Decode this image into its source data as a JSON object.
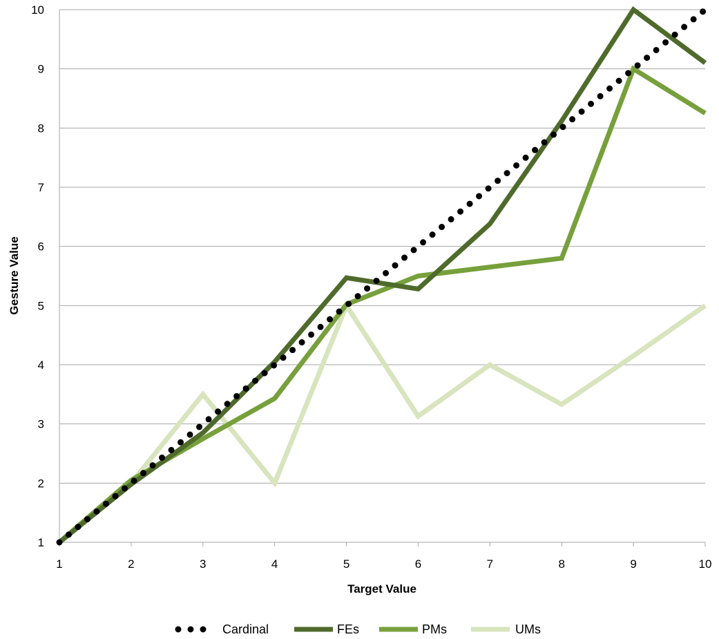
{
  "chart_data": {
    "type": "line",
    "title": "",
    "xlabel": "Target Value",
    "ylabel": "Gesture Value",
    "x": [
      1,
      2,
      3,
      4,
      5,
      6,
      7,
      8,
      9,
      10
    ],
    "xlim": [
      1,
      10
    ],
    "ylim": [
      1,
      10
    ],
    "xticks": [
      "1",
      "2",
      "3",
      "4",
      "5",
      "6",
      "7",
      "8",
      "9",
      "10"
    ],
    "yticks": [
      "1",
      "2",
      "3",
      "4",
      "5",
      "6",
      "7",
      "8",
      "9",
      "10"
    ],
    "grid": "horizontal",
    "legend_position": "bottom",
    "series": [
      {
        "name": "Cardinal",
        "style": "dotted",
        "color": "#000000",
        "values": [
          1,
          2,
          3,
          4,
          5,
          6,
          7,
          8,
          9,
          10
        ]
      },
      {
        "name": "FEs",
        "style": "solid",
        "color": "#4f6b2c",
        "values": [
          1,
          1.98,
          2.85,
          4.05,
          5.47,
          5.28,
          6.38,
          8.12,
          10.0,
          9.1
        ]
      },
      {
        "name": "PMs",
        "style": "solid",
        "color": "#77a03c",
        "values": [
          1,
          2.05,
          2.75,
          3.43,
          5.02,
          5.5,
          5.65,
          5.8,
          9.0,
          8.25
        ]
      },
      {
        "name": "UMs",
        "style": "solid",
        "color": "#d7e4bd",
        "values": [
          1,
          2.0,
          3.5,
          2.0,
          5.0,
          3.13,
          4.0,
          3.33,
          4.15,
          5.0
        ]
      }
    ]
  }
}
